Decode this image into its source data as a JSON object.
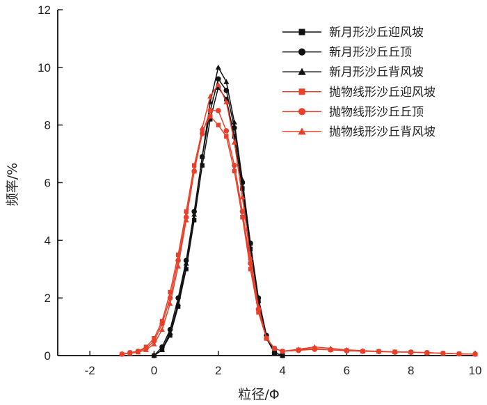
{
  "chart_data": {
    "type": "line",
    "title": "",
    "xlabel": "粒径/Φ",
    "ylabel": "频率/%",
    "xlim": [
      -3,
      10
    ],
    "ylim": [
      0,
      12
    ],
    "xticks": [
      -2,
      0,
      2,
      4,
      6,
      8,
      10
    ],
    "yticks": [
      0,
      2,
      4,
      6,
      8,
      10,
      12
    ],
    "grid": false,
    "legend": "top-right",
    "series": [
      {
        "name": "新月形沙丘迎风坡",
        "color": "#111111",
        "marker": "square",
        "x": [
          0.0,
          0.25,
          0.5,
          0.75,
          1.0,
          1.25,
          1.5,
          1.75,
          2.0,
          2.25,
          2.5,
          2.75,
          3.0,
          3.25,
          3.5,
          3.75,
          4.0
        ],
        "y": [
          0.0,
          0.2,
          0.7,
          1.7,
          3.0,
          4.7,
          6.6,
          8.2,
          9.3,
          8.9,
          7.6,
          5.8,
          3.7,
          1.9,
          0.6,
          0.1,
          0.0
        ]
      },
      {
        "name": "新月形沙丘丘顶",
        "color": "#111111",
        "marker": "circle",
        "x": [
          0.0,
          0.25,
          0.5,
          0.75,
          1.0,
          1.25,
          1.5,
          1.75,
          2.0,
          2.25,
          2.5,
          2.75,
          3.0,
          3.25,
          3.5,
          3.75,
          4.0
        ],
        "y": [
          0.0,
          0.3,
          0.9,
          2.0,
          3.3,
          5.0,
          6.9,
          8.5,
          9.6,
          9.2,
          7.9,
          6.0,
          3.9,
          2.0,
          0.7,
          0.1,
          0.0
        ]
      },
      {
        "name": "新月形沙丘背风坡",
        "color": "#111111",
        "marker": "triangle",
        "x": [
          0.0,
          0.25,
          0.5,
          0.75,
          1.0,
          1.25,
          1.5,
          1.75,
          2.0,
          2.25,
          2.5,
          2.75,
          3.0,
          3.25,
          3.5,
          3.75,
          4.0
        ],
        "y": [
          0.0,
          0.2,
          0.8,
          1.8,
          3.2,
          4.9,
          6.9,
          8.8,
          10.0,
          9.5,
          8.1,
          6.1,
          3.9,
          1.9,
          0.6,
          0.1,
          0.0
        ]
      },
      {
        "name": "抛物线形沙丘迎风坡",
        "color": "#e8402a",
        "marker": "square",
        "x": [
          -1.0,
          -0.75,
          -0.5,
          -0.25,
          0.0,
          0.25,
          0.5,
          0.75,
          1.0,
          1.25,
          1.5,
          1.75,
          2.0,
          2.25,
          2.5,
          2.75,
          3.0,
          3.25,
          3.5,
          3.75,
          4.0,
          4.5,
          5.0,
          5.5,
          6.0,
          6.5,
          7.0,
          7.5,
          8.0,
          8.5,
          9.0,
          9.5,
          10.0
        ],
        "y": [
          0.05,
          0.1,
          0.15,
          0.3,
          0.6,
          1.2,
          2.2,
          3.5,
          5.0,
          6.6,
          7.8,
          8.3,
          8.0,
          7.6,
          6.4,
          4.8,
          3.0,
          1.5,
          0.6,
          0.25,
          0.15,
          0.2,
          0.25,
          0.2,
          0.18,
          0.15,
          0.15,
          0.13,
          0.12,
          0.1,
          0.08,
          0.06,
          0.05
        ]
      },
      {
        "name": "抛物线形沙丘丘顶",
        "color": "#e8402a",
        "marker": "circle",
        "x": [
          -1.0,
          -0.75,
          -0.5,
          -0.25,
          0.0,
          0.25,
          0.5,
          0.75,
          1.0,
          1.25,
          1.5,
          1.75,
          2.0,
          2.25,
          2.5,
          2.75,
          3.0,
          3.25,
          3.5,
          3.75,
          4.0,
          4.5,
          5.0,
          5.5,
          6.0,
          6.5,
          7.0,
          7.5,
          8.0,
          8.5,
          9.0,
          9.5,
          10.0
        ],
        "y": [
          0.05,
          0.1,
          0.15,
          0.25,
          0.5,
          1.1,
          2.0,
          3.3,
          4.8,
          6.4,
          7.7,
          8.5,
          8.5,
          7.8,
          6.6,
          5.0,
          3.2,
          1.6,
          0.6,
          0.25,
          0.15,
          0.18,
          0.22,
          0.2,
          0.17,
          0.15,
          0.14,
          0.12,
          0.12,
          0.1,
          0.08,
          0.06,
          0.05
        ]
      },
      {
        "name": "抛物线形沙丘背风坡",
        "color": "#e8402a",
        "marker": "triangle",
        "x": [
          -1.0,
          -0.75,
          -0.5,
          -0.25,
          0.0,
          0.25,
          0.5,
          0.75,
          1.0,
          1.25,
          1.5,
          1.75,
          2.0,
          2.25,
          2.5,
          2.75,
          3.0,
          3.25,
          3.5,
          3.75,
          4.0,
          4.5,
          5.0,
          5.5,
          6.0,
          6.5,
          7.0,
          7.5,
          8.0,
          8.5,
          9.0,
          9.5,
          10.0
        ],
        "y": [
          0.05,
          0.08,
          0.12,
          0.2,
          0.4,
          0.9,
          1.8,
          3.1,
          4.7,
          6.4,
          7.9,
          9.0,
          9.4,
          8.8,
          7.4,
          5.5,
          3.4,
          1.7,
          0.6,
          0.25,
          0.15,
          0.22,
          0.3,
          0.25,
          0.2,
          0.17,
          0.15,
          0.13,
          0.12,
          0.1,
          0.08,
          0.06,
          0.05
        ]
      }
    ]
  }
}
